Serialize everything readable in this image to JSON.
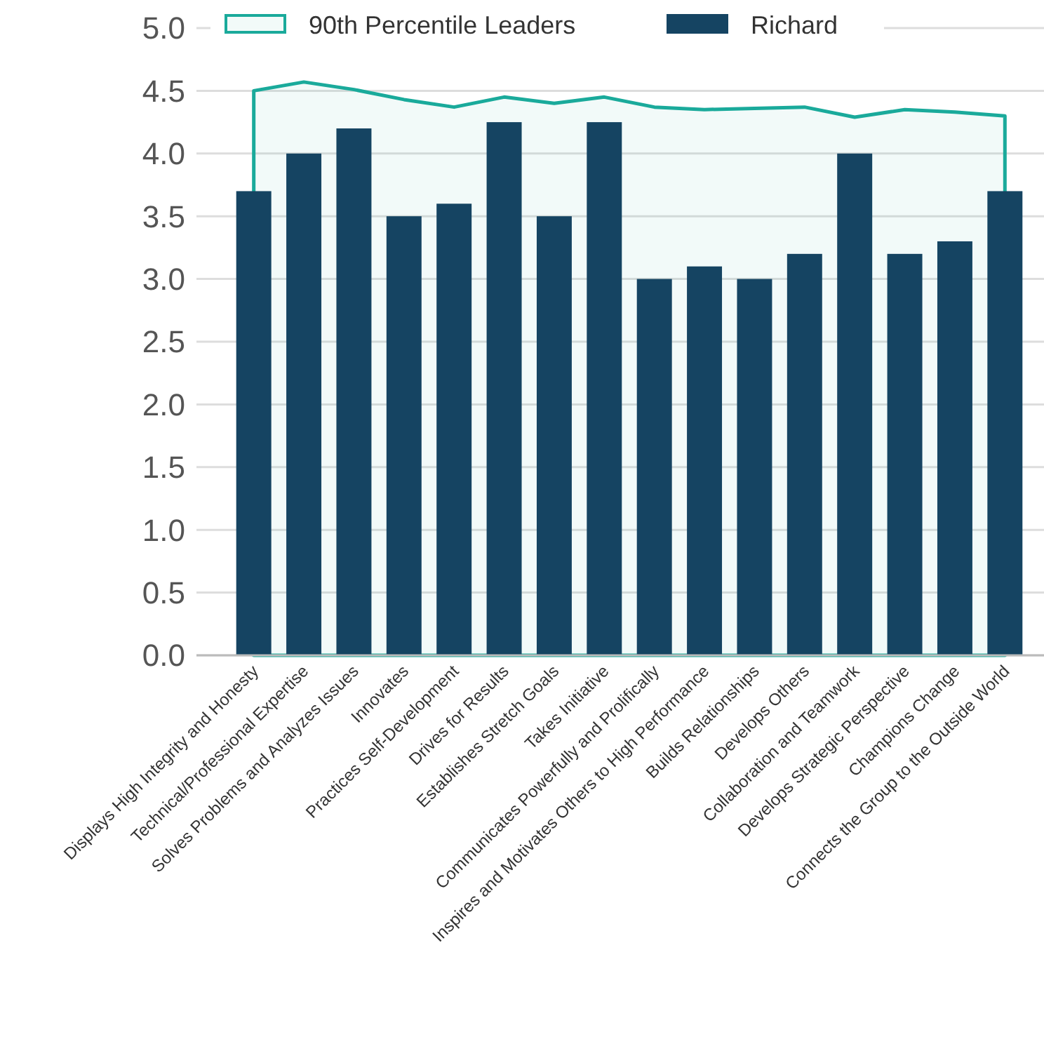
{
  "chart_data": {
    "type": "bar",
    "categories": [
      "Displays High Integrity and Honesty",
      "Technical/Professional Expertise",
      "Solves Problems and Analyzes Issues",
      "Innovates",
      "Practices Self-Development",
      "Drives for Results",
      "Establishes Stretch Goals",
      "Takes Initiative",
      "Communicates Powerfully and Prolifically",
      "Inspires and Motivates Others to High Performance",
      "Builds Relationships",
      "Develops Others",
      "Collaboration and Teamwork",
      "Develops Strategic Perspective",
      "Champions Change",
      "Connects the Group to the Outside World"
    ],
    "series": [
      {
        "name": "90th Percentile Leaders",
        "type": "area",
        "color": "#1aaa9b",
        "values": [
          4.5,
          4.57,
          4.51,
          4.43,
          4.37,
          4.45,
          4.4,
          4.45,
          4.37,
          4.35,
          4.36,
          4.37,
          4.29,
          4.35,
          4.33,
          4.3
        ]
      },
      {
        "name": "Richard",
        "type": "bar",
        "color": "#154462",
        "values": [
          3.7,
          4.0,
          4.2,
          3.5,
          3.6,
          4.25,
          3.5,
          4.25,
          3.0,
          3.1,
          3.0,
          3.2,
          4.0,
          3.2,
          3.3,
          3.7
        ]
      }
    ],
    "ylim": [
      0,
      5
    ],
    "yticks": [
      {
        "value": 0,
        "label": "0.0"
      },
      {
        "value": 0.5,
        "label": "0.5"
      },
      {
        "value": 1,
        "label": "1.0"
      },
      {
        "value": 1.5,
        "label": "1.5"
      },
      {
        "value": 2,
        "label": "2.0"
      },
      {
        "value": 2.5,
        "label": "2.5"
      },
      {
        "value": 3,
        "label": "3.0"
      },
      {
        "value": 3.5,
        "label": "3.5"
      },
      {
        "value": 4,
        "label": "4.0"
      },
      {
        "value": 4.5,
        "label": "4.5"
      },
      {
        "value": 5,
        "label": "5.0"
      }
    ],
    "grid": "y",
    "legend": "top"
  }
}
